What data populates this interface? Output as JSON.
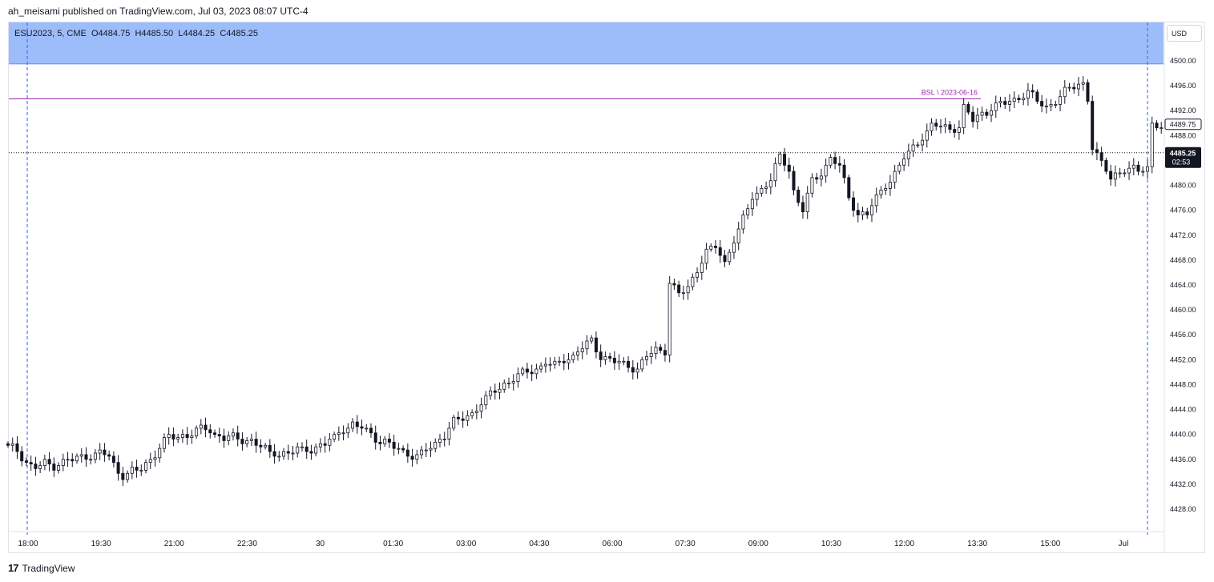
{
  "header": {
    "published_text": "ah_meisami published on TradingView.com, Jul 03, 2023 08:07 UTC-4"
  },
  "legend": {
    "symbol": "ESU2023, 5, CME",
    "open": "O4484.75",
    "high": "H4485.50",
    "low": "L4484.25",
    "close": "C4485.25"
  },
  "currency": "USD",
  "footer": {
    "brand": "TradingView",
    "logo_glyph": "17"
  },
  "colors": {
    "highlight_band": "#98b9fa",
    "bsl_line": "#9c27b0",
    "session_line": "#2962ff",
    "candle": "#131722",
    "last_price_bg": "#131722"
  },
  "chart_data": {
    "type": "candlestick",
    "symbol": "ESU2023",
    "interval": "5",
    "exchange": "CME",
    "ylim": [
      4425.0,
      4502.0
    ],
    "y_ticks": [
      "4500.00",
      "4496.00",
      "4492.00",
      "4488.00",
      "4484.00",
      "4480.00",
      "4476.00",
      "4472.00",
      "4468.00",
      "4464.00",
      "4460.00",
      "4456.00",
      "4452.00",
      "4448.00",
      "4444.00",
      "4440.00",
      "4436.00",
      "4432.00",
      "4428.00"
    ],
    "x_ticks": [
      "18:00",
      "19:30",
      "21:00",
      "22:30",
      "30",
      "01:30",
      "03:00",
      "04:30",
      "06:00",
      "07:30",
      "09:00",
      "10:30",
      "12:00",
      "13:30",
      "15:00",
      "Jul"
    ],
    "highlight_zone": {
      "from": 4499.5,
      "to": 4510.0
    },
    "bsl_level": {
      "label": "BSL \\ 2023-06-16",
      "price": 4493.9
    },
    "last_price": {
      "value": "4485.25",
      "countdown": "02:53",
      "price": 4485.25
    },
    "previous_label": {
      "value": "4489.75",
      "price": 4489.75
    },
    "session_breaks": [
      "18:00",
      "Jul"
    ],
    "close_path": [
      [
        0,
        4438.0
      ],
      [
        2,
        4437.5
      ],
      [
        4,
        4435.5
      ],
      [
        6,
        4434.5
      ],
      [
        8,
        4435.5
      ],
      [
        10,
        4435.0
      ],
      [
        12,
        4435.5
      ],
      [
        14,
        4436.0
      ],
      [
        16,
        4436.5
      ],
      [
        18,
        4436.5
      ],
      [
        20,
        4437.0
      ],
      [
        22,
        4436.5
      ],
      [
        24,
        4434.0
      ],
      [
        25,
        4433.5
      ],
      [
        27,
        4434.0
      ],
      [
        29,
        4434.5
      ],
      [
        31,
        4436.0
      ],
      [
        33,
        4438.0
      ],
      [
        35,
        4439.5
      ],
      [
        37,
        4439.5
      ],
      [
        39,
        4440.0
      ],
      [
        41,
        4440.5
      ],
      [
        43,
        4441.0
      ],
      [
        45,
        4440.0
      ],
      [
        47,
        4439.5
      ],
      [
        49,
        4439.5
      ],
      [
        51,
        4439.0
      ],
      [
        53,
        4439.0
      ],
      [
        55,
        4438.0
      ],
      [
        57,
        4437.0
      ],
      [
        59,
        4437.0
      ],
      [
        61,
        4437.0
      ],
      [
        63,
        4437.5
      ],
      [
        65,
        4437.5
      ],
      [
        67,
        4438.0
      ],
      [
        69,
        4438.5
      ],
      [
        71,
        4439.5
      ],
      [
        73,
        4441.0
      ],
      [
        75,
        4441.5
      ],
      [
        77,
        4441.0
      ],
      [
        79,
        4440.0
      ],
      [
        81,
        4439.0
      ],
      [
        83,
        4438.5
      ],
      [
        85,
        4437.5
      ],
      [
        87,
        4437.0
      ],
      [
        89,
        4436.5
      ],
      [
        91,
        4437.5
      ],
      [
        93,
        4438.5
      ],
      [
        95,
        4440.0
      ],
      [
        97,
        4442.0
      ],
      [
        99,
        4442.5
      ],
      [
        101,
        4443.5
      ],
      [
        103,
        4445.0
      ],
      [
        105,
        4446.5
      ],
      [
        107,
        4447.5
      ],
      [
        109,
        4448.5
      ],
      [
        111,
        4449.5
      ],
      [
        113,
        4450.0
      ],
      [
        115,
        4450.5
      ],
      [
        117,
        4451.5
      ],
      [
        119,
        4451.0
      ],
      [
        121,
        4452.0
      ],
      [
        123,
        4452.5
      ],
      [
        125,
        4454.0
      ],
      [
        127,
        4455.0
      ],
      [
        129,
        4452.5
      ],
      [
        131,
        4452.0
      ],
      [
        133,
        4451.5
      ],
      [
        135,
        4451.0
      ],
      [
        137,
        4450.5
      ],
      [
        139,
        4452.5
      ],
      [
        141,
        4453.5
      ],
      [
        143,
        4453.5
      ],
      [
        144,
        4464.5
      ],
      [
        146,
        4462.5
      ],
      [
        148,
        4463.5
      ],
      [
        150,
        4466.5
      ],
      [
        152,
        4469.5
      ],
      [
        154,
        4470.0
      ],
      [
        156,
        4467.5
      ],
      [
        158,
        4471.5
      ],
      [
        160,
        4474.5
      ],
      [
        162,
        4478.0
      ],
      [
        164,
        4479.5
      ],
      [
        166,
        4481.0
      ],
      [
        168,
        4484.5
      ],
      [
        170,
        4482.5
      ],
      [
        171,
        4479.0
      ],
      [
        173,
        4476.0
      ],
      [
        175,
        4480.5
      ],
      [
        177,
        4482.0
      ],
      [
        179,
        4484.5
      ],
      [
        181,
        4483.0
      ],
      [
        183,
        4478.0
      ],
      [
        185,
        4475.5
      ],
      [
        187,
        4475.5
      ],
      [
        189,
        4478.0
      ],
      [
        191,
        4480.0
      ],
      [
        193,
        4482.0
      ],
      [
        195,
        4484.5
      ],
      [
        197,
        4486.0
      ],
      [
        199,
        4488.0
      ],
      [
        201,
        4489.5
      ],
      [
        203,
        4489.5
      ],
      [
        205,
        4489.0
      ],
      [
        207,
        4489.5
      ],
      [
        208,
        4492.5
      ],
      [
        210,
        4490.5
      ],
      [
        212,
        4491.5
      ],
      [
        214,
        4492.5
      ],
      [
        216,
        4493.0
      ],
      [
        218,
        4493.5
      ],
      [
        220,
        4494.0
      ],
      [
        222,
        4495.0
      ],
      [
        224,
        4493.5
      ],
      [
        226,
        4492.5
      ],
      [
        228,
        4493.5
      ],
      [
        230,
        4495.0
      ],
      [
        232,
        4496.0
      ],
      [
        234,
        4496.5
      ],
      [
        235,
        4494.0
      ],
      [
        236,
        4486.0
      ],
      [
        238,
        4483.5
      ],
      [
        240,
        4481.5
      ],
      [
        242,
        4482.0
      ],
      [
        244,
        4482.5
      ],
      [
        246,
        4482.5
      ],
      [
        248,
        4483.0
      ],
      [
        249,
        4489.75
      ],
      [
        250,
        4489.5
      ],
      [
        251,
        4489.25
      ],
      [
        252,
        4489.0
      ]
    ],
    "sample_ohlc": [
      {
        "i": 0,
        "o": 4438.0,
        "h": 4438.5,
        "l": 4437.5,
        "c": 4438.0
      },
      {
        "i": 144,
        "o": 4453.5,
        "h": 4465.5,
        "l": 4453.0,
        "c": 4464.5
      },
      {
        "i": 236,
        "o": 4497.5,
        "h": 4497.5,
        "l": 4483.0,
        "c": 4486.0
      },
      {
        "i": 244,
        "o": 4482.0,
        "h": 4483.5,
        "l": 4481.5,
        "c": 4482.5
      }
    ]
  }
}
